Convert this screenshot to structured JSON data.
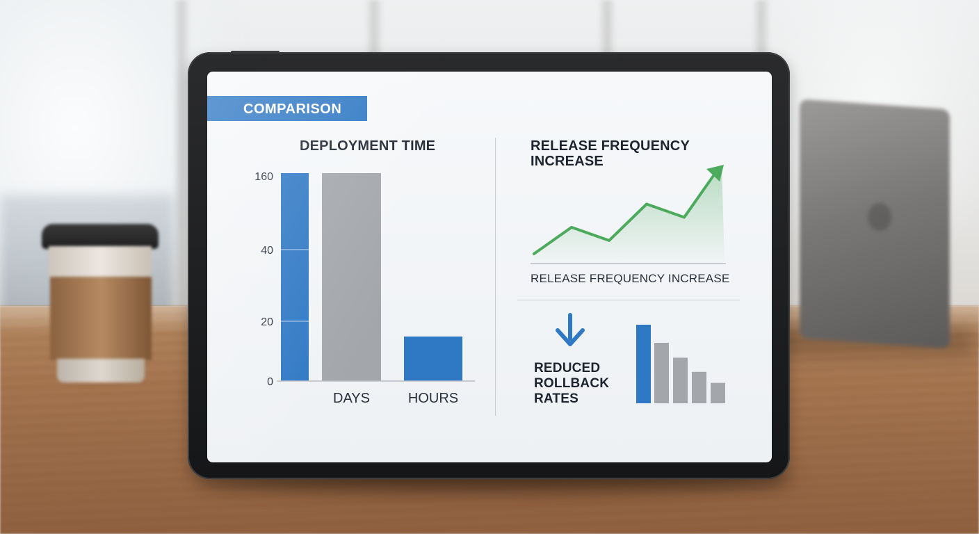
{
  "tag_label": "COMPARISON",
  "deployment_chart": {
    "title": "DEPLOYMENT TIME",
    "type": "bar",
    "y_ticks": [
      "160",
      "40",
      "20",
      "0"
    ],
    "categories": [
      "",
      "DAYS",
      "HOURS"
    ],
    "values": [
      160,
      160,
      20
    ],
    "colors": [
      "#2f78c4",
      "#a3a6ab",
      "#2f78c4"
    ],
    "gridlines_at": [
      40,
      20
    ]
  },
  "release_chart": {
    "title_line1": "RELEASE FREQUENCY",
    "title_line2": "INCREASE",
    "type": "area",
    "values": [
      0,
      40,
      20,
      75,
      55,
      130
    ],
    "caption": "RELEASE FREQUENCY INCREASE",
    "color": "#4caa5c"
  },
  "rollback_chart": {
    "label_line1": "REDUCED",
    "label_line2": "ROLLBACK",
    "label_line3": "RATES",
    "icon": "arrow-down-icon",
    "type": "bar",
    "values": [
      100,
      77,
      58,
      40,
      26
    ],
    "colors": [
      "#2f78c4",
      "#a3a6ab",
      "#a3a6ab",
      "#a3a6ab",
      "#a3a6ab"
    ]
  }
}
